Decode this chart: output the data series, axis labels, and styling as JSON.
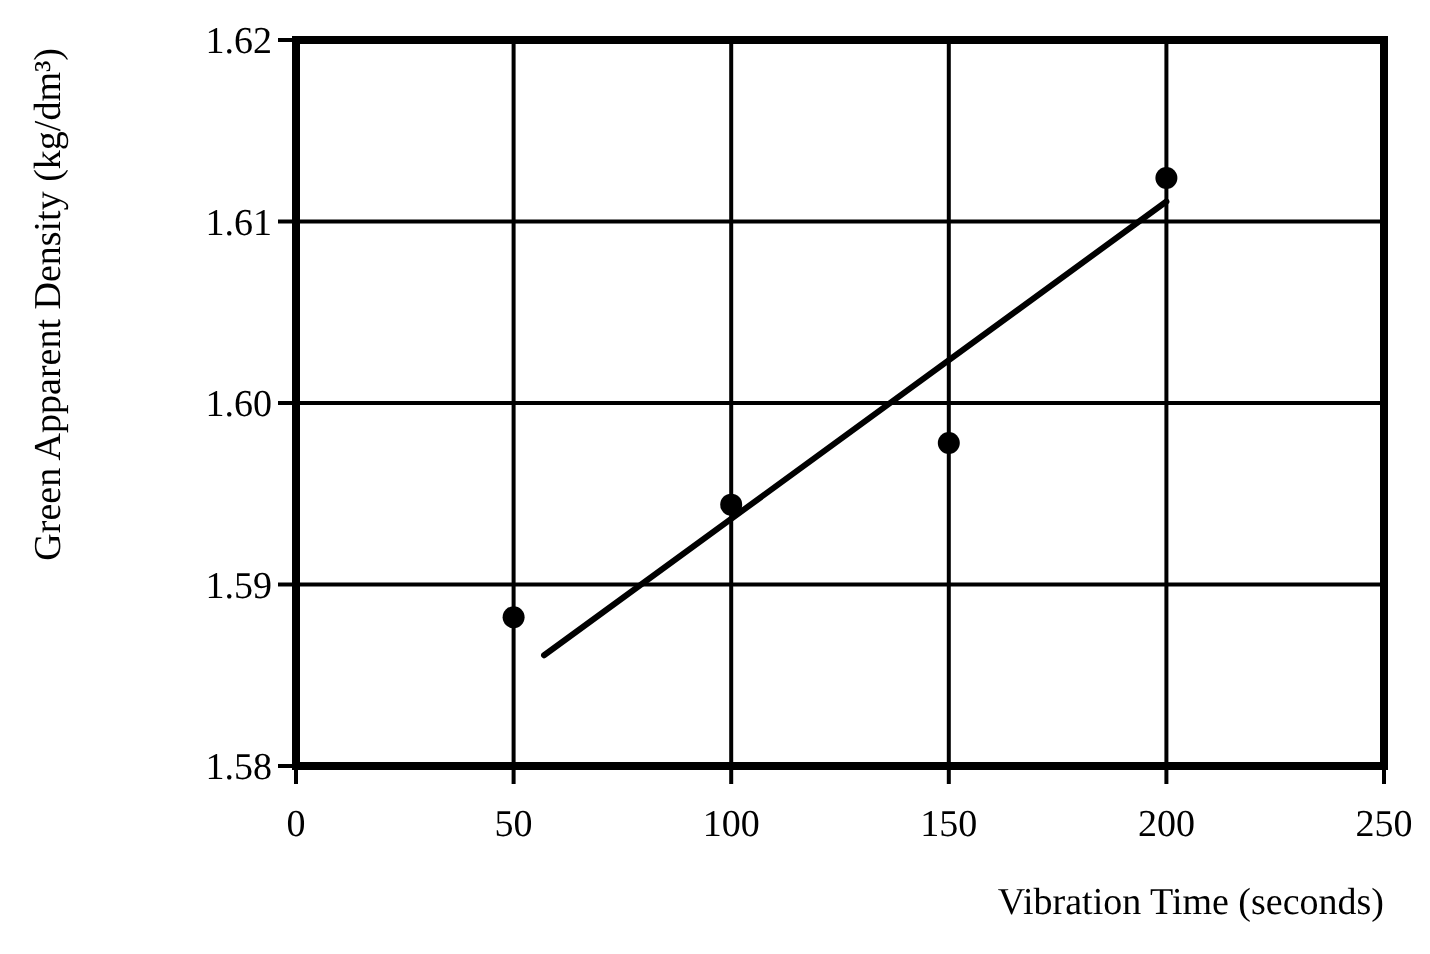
{
  "chart_data": {
    "type": "scatter",
    "xlabel": "Vibration Time (seconds)",
    "ylabel": "Green Apparent Density (kg/dm³)",
    "series": [
      {
        "color": "#000000",
        "x": [
          50,
          100,
          150,
          200
        ],
        "values": [
          1.5882,
          1.5944,
          1.5978,
          1.6124
        ],
        "marker": "circle"
      },
      {
        "type": "line",
        "color": "#000000",
        "x": [
          57,
          200
        ],
        "values": [
          1.5861,
          1.6111
        ],
        "marker": "none",
        "line_style": "solid"
      }
    ],
    "xlim": [
      0,
      250
    ],
    "xticks": [
      0,
      50,
      100,
      150,
      200,
      250
    ],
    "ylim": [
      1.58,
      1.62
    ],
    "yticks": [
      1.58,
      1.59,
      {
        "value": 1.6,
        "label": "1.60"
      },
      1.61,
      1.62
    ],
    "grid": true
  }
}
